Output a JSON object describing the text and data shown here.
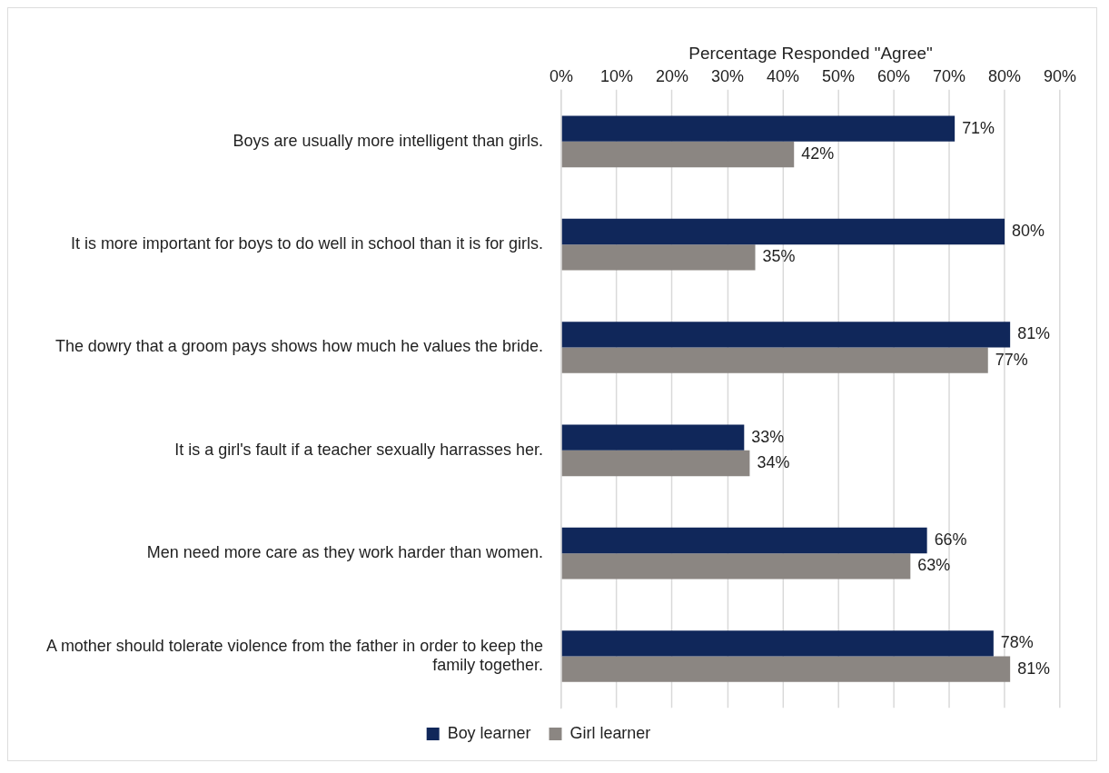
{
  "chart_data": {
    "type": "bar",
    "orientation": "horizontal",
    "xlabel": "Percentage Responded \"Agree\"",
    "categories": [
      "Boys are usually more intelligent than girls.",
      "It is more important for boys to do well in school than it is for girls.",
      "The dowry that a groom pays shows how much he values the bride.",
      "It is a girl's fault if a teacher sexually harrasses her.",
      "Men need more care as they work harder than women.",
      "A mother should tolerate violence from the father in order to keep the family together."
    ],
    "series": [
      {
        "name": "Boy learner",
        "color": "#10275a",
        "values": [
          71,
          80,
          81,
          33,
          66,
          78
        ],
        "value_labels": [
          "71%",
          "80%",
          "81%",
          "33%",
          "66%",
          "78%"
        ]
      },
      {
        "name": "Girl learner",
        "color": "#8b8682",
        "values": [
          42,
          35,
          77,
          34,
          63,
          81
        ],
        "value_labels": [
          "42%",
          "35%",
          "77%",
          "34%",
          "63%",
          "81%"
        ]
      }
    ],
    "xlim": [
      0,
      90
    ],
    "xticks": [
      {
        "value": 0,
        "label": "0%"
      },
      {
        "value": 10,
        "label": "10%"
      },
      {
        "value": 20,
        "label": "20%"
      },
      {
        "value": 30,
        "label": "30%"
      },
      {
        "value": 40,
        "label": "40%"
      },
      {
        "value": 50,
        "label": "50%"
      },
      {
        "value": 60,
        "label": "60%"
      },
      {
        "value": 70,
        "label": "70%"
      },
      {
        "value": 80,
        "label": "80%"
      },
      {
        "value": 90,
        "label": "90%"
      }
    ],
    "grid": "x",
    "legend": "bottom"
  }
}
